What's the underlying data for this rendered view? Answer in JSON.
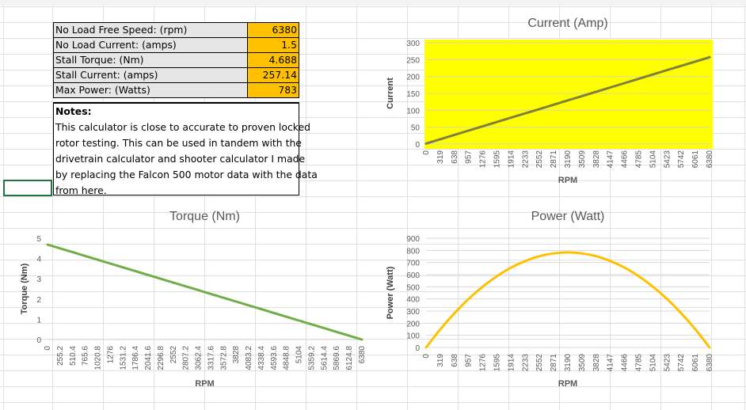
{
  "table": {
    "rows": [
      {
        "label": "No Load Free Speed: (rpm)",
        "value": "6380"
      },
      {
        "label": "No Load Current: (amps)",
        "value": "1.5"
      },
      {
        "label": "Stall Torque: (Nm)",
        "value": "4.688"
      },
      {
        "label": "Stall Current: (amps)",
        "value": "257.14"
      },
      {
        "label": "Max Power: (Watts)",
        "value": "783"
      }
    ]
  },
  "notes": {
    "title": "Notes:",
    "lines": [
      "This calculator is close to accurate to proven locked",
      "rotor testing. This can be used in tandem with the",
      "drivetrain calculator and shooter calculator I made",
      "by replacing the Falcon 500 motor data with the data",
      "from here."
    ]
  },
  "colors": {
    "current_bg": "#ffff00",
    "current_line": "#7f7f3f",
    "torque_line": "#70ad47",
    "power_line": "#ffc000",
    "table_value_bg": "#ffc000",
    "table_label_bg": "#e6e6e6",
    "selection": "#217346"
  },
  "chart_data": [
    {
      "type": "line",
      "title": "Current (Amp)",
      "xlabel": "RPM",
      "ylabel": "Current",
      "categories": [
        "0",
        "319",
        "638",
        "957",
        "1276",
        "1595",
        "1914",
        "2233",
        "2552",
        "2871",
        "3190",
        "3509",
        "3828",
        "4147",
        "4466",
        "4785",
        "5104",
        "5423",
        "5742",
        "6061",
        "6380"
      ],
      "x": [
        0,
        319,
        638,
        957,
        1276,
        1595,
        1914,
        2233,
        2552,
        2871,
        3190,
        3509,
        3828,
        4147,
        4466,
        4785,
        5104,
        5423,
        5742,
        6061,
        6380
      ],
      "values": [
        1.5,
        14.3,
        27.1,
        39.9,
        52.6,
        65.4,
        78.2,
        91.0,
        103.7,
        116.5,
        129.3,
        142.1,
        154.9,
        167.6,
        180.4,
        193.2,
        206.0,
        218.8,
        231.5,
        244.3,
        257.1
      ],
      "ylim": [
        0,
        300
      ],
      "yticks": [
        0,
        50,
        100,
        150,
        200,
        250,
        300
      ],
      "grid": true
    },
    {
      "type": "line",
      "title": "Torque (Nm)",
      "xlabel": "RPM",
      "ylabel": "Torque (Nm)",
      "categories": [
        "0",
        "255.2",
        "510.4",
        "765.6",
        "1020.8",
        "1276",
        "1531.2",
        "1786.4",
        "2041.6",
        "2296.8",
        "2552",
        "2807.2",
        "3062.4",
        "3317.6",
        "3572.8",
        "3828",
        "4083.2",
        "4338.4",
        "4593.6",
        "4848.8",
        "5104",
        "5359.2",
        "5614.4",
        "5869.6",
        "6124.8",
        "6380"
      ],
      "x": [
        0,
        255.2,
        510.4,
        765.6,
        1020.8,
        1276,
        1531.2,
        1786.4,
        2041.6,
        2296.8,
        2552,
        2807.2,
        3062.4,
        3317.6,
        3572.8,
        3828,
        4083.2,
        4338.4,
        4593.6,
        4848.8,
        5104,
        5359.2,
        5614.4,
        5869.6,
        6124.8,
        6380
      ],
      "values": [
        4.688,
        4.5,
        4.313,
        4.125,
        3.938,
        3.75,
        3.563,
        3.375,
        3.188,
        3.0,
        2.813,
        2.625,
        2.438,
        2.25,
        2.063,
        1.875,
        1.688,
        1.5,
        1.313,
        1.125,
        0.938,
        0.75,
        0.563,
        0.375,
        0.188,
        0.0
      ],
      "ylim": [
        0,
        5
      ],
      "yticks": [
        0,
        1,
        2,
        3,
        4,
        5
      ],
      "grid": false
    },
    {
      "type": "line",
      "title": "Power (Watt)",
      "xlabel": "RPM",
      "ylabel": "Power (Watt)",
      "categories": [
        "0",
        "319",
        "638",
        "957",
        "1276",
        "1595",
        "1914",
        "2233",
        "2552",
        "2871",
        "3190",
        "3509",
        "3828",
        "4147",
        "4466",
        "4785",
        "5104",
        "5423",
        "5742",
        "6061",
        "6380"
      ],
      "x": [
        0,
        319,
        638,
        957,
        1276,
        1595,
        1914,
        2233,
        2552,
        2871,
        3190,
        3509,
        3828,
        4147,
        4466,
        4785,
        5104,
        5423,
        5742,
        6061,
        6380
      ],
      "values": [
        0,
        149,
        282,
        400,
        501,
        587,
        658,
        712,
        752,
        775,
        783,
        775,
        752,
        712,
        658,
        587,
        501,
        400,
        282,
        149,
        0
      ],
      "ylim": [
        0,
        900
      ],
      "yticks": [
        0,
        100,
        200,
        300,
        400,
        500,
        600,
        700,
        800,
        900
      ],
      "grid": true
    }
  ]
}
